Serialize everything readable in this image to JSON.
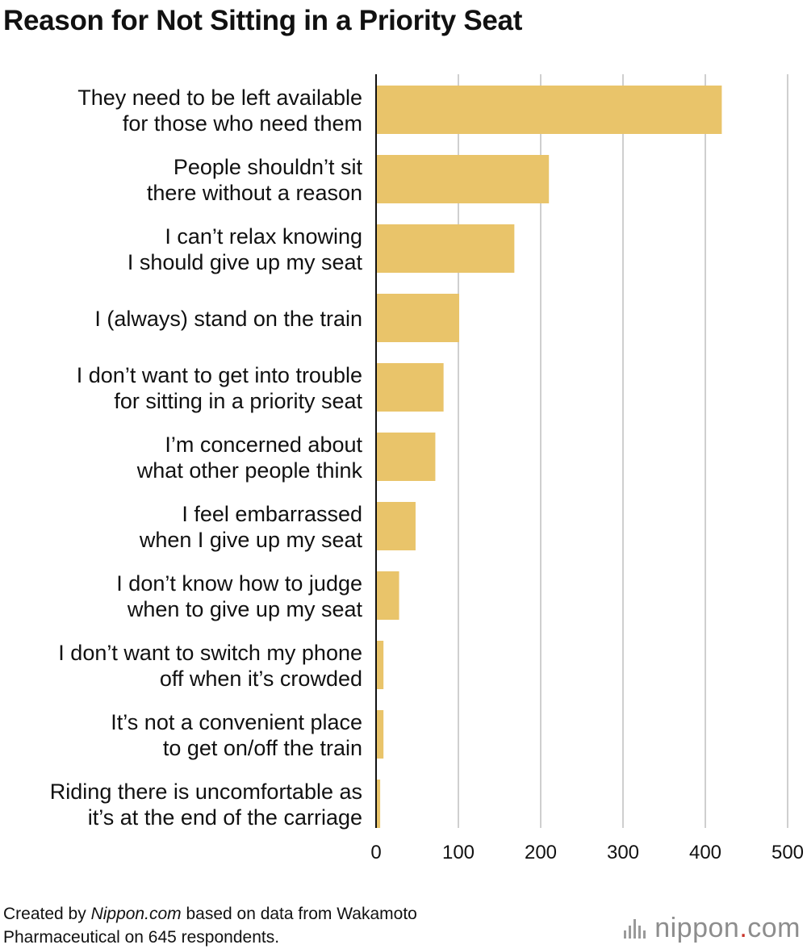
{
  "chart_data": {
    "type": "bar",
    "orientation": "horizontal",
    "title": "Reason for Not Sitting in a Priority Seat",
    "categories": [
      [
        "They need to be left available",
        "for those who need them"
      ],
      [
        "People shouldn’t sit",
        "there without a reason"
      ],
      [
        "I can’t relax knowing",
        "I should give up my seat"
      ],
      [
        "I (always) stand on the train"
      ],
      [
        "I don’t want to get into trouble",
        "for sitting in a priority seat"
      ],
      [
        "I’m concerned about",
        "what other people think"
      ],
      [
        "I feel embarrassed",
        "when I give up my seat"
      ],
      [
        "I don’t know how to judge",
        "when to give up my seat"
      ],
      [
        "I don’t want to switch my phone",
        "off when it’s crowded"
      ],
      [
        "It’s not a convenient place",
        "to get on/off the train"
      ],
      [
        "Riding there is uncomfortable as",
        "it’s at the end of the carriage"
      ]
    ],
    "values": [
      420,
      210,
      168,
      101,
      82,
      72,
      48,
      28,
      9,
      9,
      5
    ],
    "xlim": [
      0,
      500
    ],
    "xticks": [
      0,
      100,
      200,
      300,
      400,
      500
    ],
    "grid": true,
    "bar_color": "#E9C46A",
    "grid_color": "#cfcfcf",
    "axis_color": "#111111"
  },
  "footer": {
    "prefix": "Created by ",
    "source_name": "Nippon.com",
    "suffix": " based on data from Wakamoto",
    "line2": "Pharmaceutical on 645 respondents."
  },
  "logo": {
    "name": "nippon",
    "dot_suffix": ".",
    "tld": "com"
  }
}
